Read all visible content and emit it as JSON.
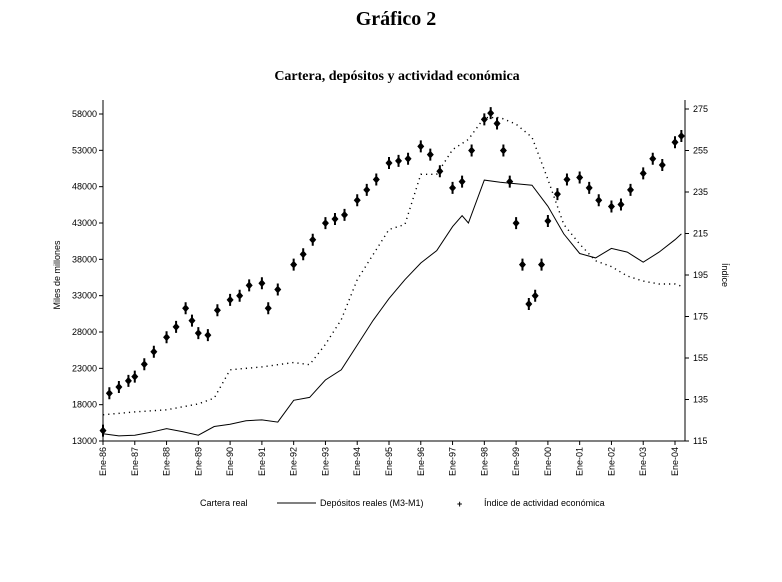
{
  "chart_data": {
    "type": "line",
    "title": "Gráfico 2",
    "subtitle": "Cartera, depósitos y actividad económica",
    "ylabel": "Miles de millones",
    "y2label": "Índice",
    "ylim": [
      13000,
      58000
    ],
    "y2lim": [
      115,
      275
    ],
    "yticks": [
      "13000",
      "18000",
      "23000",
      "28000",
      "33000",
      "38000",
      "43000",
      "48000",
      "53000",
      "58000"
    ],
    "y2ticks": [
      "115",
      "135",
      "155",
      "175",
      "195",
      "215",
      "235",
      "255",
      "275"
    ],
    "xticks": [
      "Ene-86",
      "Ene-87",
      "Ene-88",
      "Ene-89",
      "Ene-90",
      "Ene-91",
      "Ene-92",
      "Ene-93",
      "Ene-94",
      "Ene-95",
      "Ene-96",
      "Ene-97",
      "Ene-98",
      "Ene-99",
      "Ene-00",
      "Ene-01",
      "Ene-02",
      "Ene-03",
      "Ene-04"
    ],
    "xlim": [
      1986,
      2004.2
    ],
    "grid": false,
    "legend": "bottom",
    "series": [
      {
        "name": "Cartera real",
        "axis": "left",
        "style": "dotted",
        "x": [
          1986,
          1987,
          1988,
          1989,
          1989.5,
          1990,
          1991,
          1992,
          1992.5,
          1993,
          1993.5,
          1994,
          1995,
          1995.5,
          1996,
          1996.5,
          1997,
          1997.5,
          1998,
          1998.5,
          1999,
          1999.5,
          2000,
          2000.5,
          2001,
          2001.5,
          2002,
          2002.5,
          2003,
          2003.5,
          2004,
          2004.2
        ],
        "y": [
          16600,
          17000,
          17300,
          18100,
          18900,
          22800,
          23200,
          23800,
          23500,
          26300,
          29700,
          35200,
          42100,
          42800,
          49700,
          49700,
          53100,
          54500,
          57500,
          57500,
          56600,
          54800,
          49000,
          42800,
          40100,
          37800,
          37000,
          35700,
          35000,
          34600,
          34600,
          34300
        ]
      },
      {
        "name": "Depósitos reales (M3-M1)",
        "axis": "left",
        "style": "solid",
        "x": [
          1986,
          1986.5,
          1987,
          1987.5,
          1988,
          1988.5,
          1989,
          1989.5,
          1990,
          1990.5,
          1991,
          1991.5,
          1992,
          1992.5,
          1993,
          1993.5,
          1994,
          1994.5,
          1995,
          1995.5,
          1996,
          1996.5,
          1997,
          1997.3,
          1997.5,
          1998,
          1998.5,
          1999,
          1999.5,
          2000,
          2000.5,
          2001,
          2001.5,
          2002,
          2002.5,
          2003,
          2003.5,
          2004,
          2004.2
        ],
        "y": [
          14000,
          13700,
          13800,
          14200,
          14700,
          14300,
          13800,
          15000,
          15300,
          15800,
          15900,
          15600,
          18600,
          19000,
          21400,
          22800,
          26200,
          29600,
          32600,
          35200,
          37500,
          39200,
          42500,
          44000,
          43000,
          48900,
          48600,
          48400,
          48200,
          45300,
          41500,
          38800,
          38200,
          39500,
          39000,
          37600,
          39000,
          40700,
          41500
        ]
      },
      {
        "name": "Índice de actividad económica",
        "axis": "right",
        "style": "markers",
        "x": [
          1986,
          1986.2,
          1986.5,
          1986.8,
          1987,
          1987.3,
          1987.6,
          1988,
          1988.3,
          1988.6,
          1988.8,
          1989,
          1989.3,
          1989.6,
          1990,
          1990.3,
          1990.6,
          1991,
          1991.2,
          1991.5,
          1992,
          1992.3,
          1992.6,
          1993,
          1993.3,
          1993.6,
          1994,
          1994.3,
          1994.6,
          1995,
          1995.3,
          1995.6,
          1996,
          1996.3,
          1996.6,
          1997,
          1997.3,
          1997.6,
          1998,
          1998.2,
          1998.4,
          1998.6,
          1998.8,
          1999,
          1999.2,
          1999.4,
          1999.6,
          1999.8,
          2000,
          2000.3,
          2000.6,
          2001,
          2001.3,
          2001.6,
          2002,
          2002.3,
          2002.6,
          2003,
          2003.3,
          2003.6,
          2004,
          2004.2
        ],
        "y": [
          120,
          138,
          141,
          144,
          146,
          152,
          158,
          165,
          170,
          179,
          173,
          167,
          166,
          178,
          183,
          185,
          190,
          191,
          179,
          188,
          200,
          205,
          212,
          220,
          222,
          224,
          231,
          236,
          241,
          249,
          250,
          251,
          257,
          253,
          245,
          237,
          240,
          255,
          270,
          273,
          268,
          255,
          240,
          220,
          200,
          181,
          185,
          200,
          221,
          234,
          241,
          242,
          237,
          231,
          228,
          229,
          236,
          244,
          251,
          248,
          259,
          262
        ]
      }
    ],
    "legend_entries": [
      "Cartera real",
      "Depósitos reales (M3-M1)",
      "Índice de actividad económica"
    ]
  }
}
